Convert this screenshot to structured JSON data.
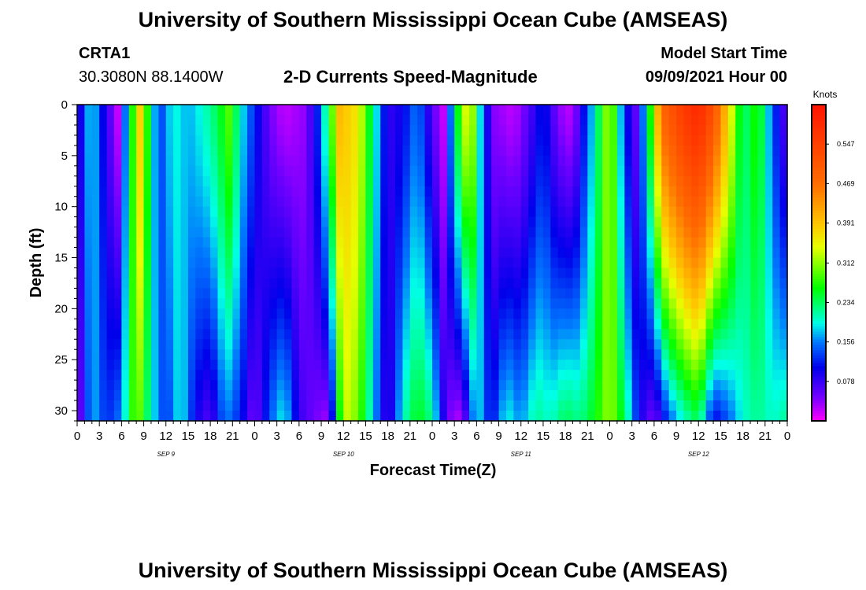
{
  "title": "University of Southern Mississippi Ocean Cube (AMSEAS)",
  "footer_title": "University of Southern Mississippi Ocean Cube (AMSEAS)",
  "station": {
    "name": "CRTA1",
    "coords": "30.3080N  88.1400W"
  },
  "model": {
    "label": "Model Start Time",
    "start": "09/09/2021 Hour 00"
  },
  "chart_data": {
    "type": "heatmap",
    "title": "2-D Currents Speed-Magnitude",
    "xlabel": "Forecast Time(Z)",
    "ylabel": "Depth (ft)",
    "x_range_hours": [
      0,
      96
    ],
    "y_range_ft": [
      0,
      31
    ],
    "x_tick_labels": [
      "0",
      "3",
      "6",
      "9",
      "12",
      "15",
      "18",
      "21",
      "0",
      "3",
      "6",
      "9",
      "12",
      "15",
      "18",
      "21",
      "0",
      "3",
      "6",
      "9",
      "12",
      "15",
      "18",
      "21",
      "0",
      "3",
      "6",
      "9",
      "12",
      "15",
      "18",
      "21",
      "0"
    ],
    "y_ticks": [
      0,
      5,
      10,
      15,
      20,
      25,
      30
    ],
    "date_labels": [
      {
        "label": "SEP 9",
        "hour": 12
      },
      {
        "label": "SEP 10",
        "hour": 36
      },
      {
        "label": "SEP 11",
        "hour": 60
      },
      {
        "label": "SEP 12",
        "hour": 84
      }
    ],
    "colorbar": {
      "unit": "Knots",
      "min": 0,
      "max": 0.625,
      "tick_values": [
        0.078,
        0.156,
        0.234,
        0.312,
        0.391,
        0.469,
        0.547
      ],
      "tick_labels": [
        "0.078",
        "0.156",
        "0.234",
        "0.312",
        "0.391",
        "0.469",
        "0.547"
      ]
    },
    "surface_speed_knots": [
      {
        "hour": 0,
        "value": 0.06
      },
      {
        "hour": 1,
        "value": 0.14
      },
      {
        "hour": 2,
        "value": 0.2
      },
      {
        "hour": 3.2,
        "value": 0.12
      },
      {
        "hour": 4.5,
        "value": 0.06
      },
      {
        "hour": 5.5,
        "value": 0.02
      },
      {
        "hour": 7,
        "value": 0.22
      },
      {
        "hour": 8.5,
        "value": 0.38
      },
      {
        "hour": 10,
        "value": 0.22
      },
      {
        "hour": 11,
        "value": 0.12
      },
      {
        "hour": 13,
        "value": 0.2
      },
      {
        "hour": 15,
        "value": 0.17
      },
      {
        "hour": 17,
        "value": 0.2
      },
      {
        "hour": 19,
        "value": 0.24
      },
      {
        "hour": 20.5,
        "value": 0.29
      },
      {
        "hour": 22.5,
        "value": 0.18
      },
      {
        "hour": 24,
        "value": 0.12
      },
      {
        "hour": 26,
        "value": 0.05
      },
      {
        "hour": 28,
        "value": 0.02
      },
      {
        "hour": 31,
        "value": 0.04
      },
      {
        "hour": 32.5,
        "value": 0.12
      },
      {
        "hour": 34,
        "value": 0.25
      },
      {
        "hour": 35.5,
        "value": 0.4
      },
      {
        "hour": 38,
        "value": 0.36
      },
      {
        "hour": 40,
        "value": 0.22
      },
      {
        "hour": 42,
        "value": 0.08
      },
      {
        "hour": 44,
        "value": 0.1
      },
      {
        "hour": 46,
        "value": 0.16
      },
      {
        "hour": 48,
        "value": 0.06
      },
      {
        "hour": 49.5,
        "value": 0.02
      },
      {
        "hour": 51,
        "value": 0.22
      },
      {
        "hour": 53,
        "value": 0.38
      },
      {
        "hour": 55,
        "value": 0.12
      },
      {
        "hour": 56.5,
        "value": 0.04
      },
      {
        "hour": 59,
        "value": 0.02
      },
      {
        "hour": 61,
        "value": 0.06
      },
      {
        "hour": 63,
        "value": 0.12
      },
      {
        "hour": 65,
        "value": 0.04
      },
      {
        "hour": 67,
        "value": 0.02
      },
      {
        "hour": 70,
        "value": 0.2
      },
      {
        "hour": 72,
        "value": 0.34
      },
      {
        "hour": 74,
        "value": 0.12
      },
      {
        "hour": 75.5,
        "value": 0.06
      },
      {
        "hour": 77,
        "value": 0.2
      },
      {
        "hour": 79,
        "value": 0.48
      },
      {
        "hour": 82,
        "value": 0.56
      },
      {
        "hour": 84,
        "value": 0.59
      },
      {
        "hour": 86,
        "value": 0.52
      },
      {
        "hour": 88,
        "value": 0.38
      },
      {
        "hour": 90,
        "value": 0.22
      },
      {
        "hour": 92,
        "value": 0.28
      },
      {
        "hour": 94,
        "value": 0.14
      },
      {
        "hour": 96,
        "value": 0.05
      }
    ],
    "bottom_speed_knots": [
      {
        "hour": 0,
        "value": 0.02
      },
      {
        "hour": 2,
        "value": 0.18
      },
      {
        "hour": 4,
        "value": 0.12
      },
      {
        "hour": 6,
        "value": 0.16
      },
      {
        "hour": 8,
        "value": 0.32
      },
      {
        "hour": 10,
        "value": 0.2
      },
      {
        "hour": 12,
        "value": 0.12
      },
      {
        "hour": 14,
        "value": 0.2
      },
      {
        "hour": 16,
        "value": 0.1
      },
      {
        "hour": 18,
        "value": 0.06
      },
      {
        "hour": 20,
        "value": 0.16
      },
      {
        "hour": 22,
        "value": 0.12
      },
      {
        "hour": 24,
        "value": 0.04
      },
      {
        "hour": 26,
        "value": 0.14
      },
      {
        "hour": 28,
        "value": 0.2
      },
      {
        "hour": 30,
        "value": 0.08
      },
      {
        "hour": 32,
        "value": 0.05
      },
      {
        "hour": 34,
        "value": 0.03
      },
      {
        "hour": 36,
        "value": 0.34
      },
      {
        "hour": 38,
        "value": 0.3
      },
      {
        "hour": 40,
        "value": 0.18
      },
      {
        "hour": 42,
        "value": 0.06
      },
      {
        "hour": 44,
        "value": 0.2
      },
      {
        "hour": 46,
        "value": 0.26
      },
      {
        "hour": 48,
        "value": 0.22
      },
      {
        "hour": 50,
        "value": 0.05
      },
      {
        "hour": 52,
        "value": 0.02
      },
      {
        "hour": 54,
        "value": 0.2
      },
      {
        "hour": 56,
        "value": 0.1
      },
      {
        "hour": 58,
        "value": 0.2
      },
      {
        "hour": 60,
        "value": 0.16
      },
      {
        "hour": 62,
        "value": 0.22
      },
      {
        "hour": 64,
        "value": 0.2
      },
      {
        "hour": 66,
        "value": 0.24
      },
      {
        "hour": 68,
        "value": 0.22
      },
      {
        "hour": 70,
        "value": 0.26
      },
      {
        "hour": 72,
        "value": 0.32
      },
      {
        "hour": 74,
        "value": 0.24
      },
      {
        "hour": 76,
        "value": 0.1
      },
      {
        "hour": 78,
        "value": 0.04
      },
      {
        "hour": 80,
        "value": 0.14
      },
      {
        "hour": 82,
        "value": 0.2
      },
      {
        "hour": 84,
        "value": 0.24
      },
      {
        "hour": 86,
        "value": 0.1
      },
      {
        "hour": 88,
        "value": 0.14
      },
      {
        "hour": 90,
        "value": 0.2
      },
      {
        "hour": 92,
        "value": 0.22
      },
      {
        "hour": 94,
        "value": 0.2
      },
      {
        "hour": 96,
        "value": 0.22
      }
    ]
  }
}
